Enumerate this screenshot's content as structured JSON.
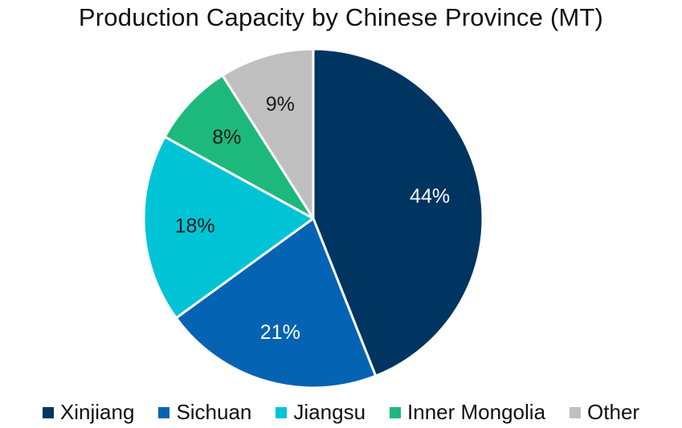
{
  "chart_data": {
    "type": "pie",
    "title": "Production Capacity by Chinese Province (MT)",
    "slices": [
      {
        "label": "Xinjiang",
        "value": 44,
        "display": "44%",
        "color": "#003461",
        "label_color": "#ffffff"
      },
      {
        "label": "Sichuan",
        "value": 21,
        "display": "21%",
        "color": "#0563b4",
        "label_color": "#ffffff"
      },
      {
        "label": "Jiangsu",
        "value": 18,
        "display": "18%",
        "color": "#00c4d6",
        "label_color": "#1a1a1a"
      },
      {
        "label": "Inner Mongolia",
        "value": 8,
        "display": "8%",
        "color": "#1db87c",
        "label_color": "#1a1a1a"
      },
      {
        "label": "Other",
        "value": 9,
        "display": "9%",
        "color": "#bfbfbf",
        "label_color": "#1a1a1a"
      }
    ],
    "start_angle_deg": 0,
    "direction": "clockwise",
    "legend_position": "bottom"
  }
}
